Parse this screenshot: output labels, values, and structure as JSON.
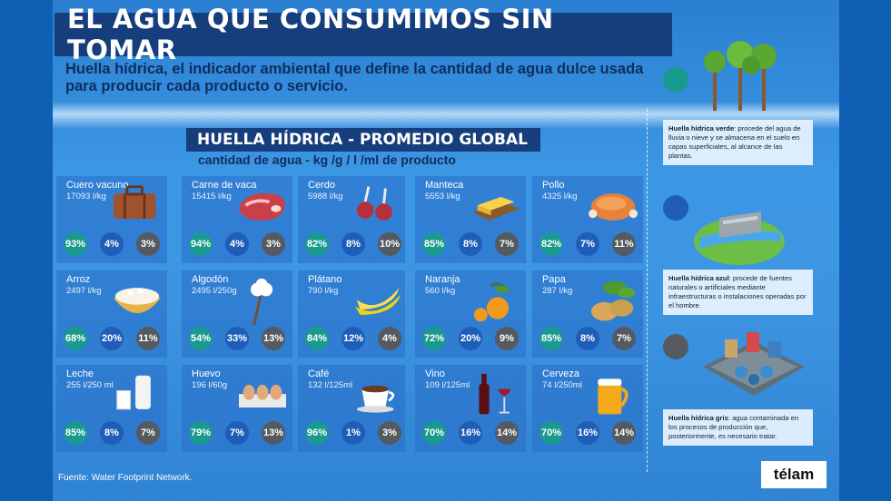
{
  "title": "EL AGUA QUE CONSUMIMOS SIN TOMAR",
  "subtitle": "Huella hídrica, el indicador ambiental que define la cantidad de agua dulce usada para producir cada producto o servicio.",
  "section_title": "HUELLA HÍDRICA - PROMEDIO GLOBAL",
  "section_subtitle": "cantidad de agua - kg /g / l /ml de producto",
  "colors": {
    "green": "#1a9a8e",
    "blue": "#1f5eb8",
    "grey": "#555a60"
  },
  "products": [
    {
      "name": "Cuero vacuno",
      "amount": "17093 l/kg",
      "green": "93%",
      "blue": "4%",
      "grey": "3%",
      "icon": "suitcase-icon"
    },
    {
      "name": "Carne de vaca",
      "amount": "15415 l/kg",
      "green": "94%",
      "blue": "4%",
      "grey": "3%",
      "icon": "beef-icon"
    },
    {
      "name": "Cerdo",
      "amount": "5988 l/kg",
      "green": "82%",
      "blue": "8%",
      "grey": "10%",
      "icon": "pork-chop-icon"
    },
    {
      "name": "Manteca",
      "amount": "5553 l/kg",
      "green": "85%",
      "blue": "8%",
      "grey": "7%",
      "icon": "butter-icon"
    },
    {
      "name": "Pollo",
      "amount": "4325 l/kg",
      "green": "82%",
      "blue": "7%",
      "grey": "11%",
      "icon": "chicken-icon"
    },
    {
      "name": "Arroz",
      "amount": "2497 l/kg",
      "green": "68%",
      "blue": "20%",
      "grey": "11%",
      "icon": "rice-bowl-icon"
    },
    {
      "name": "Algodón",
      "amount": "2495 l/250g",
      "green": "54%",
      "blue": "33%",
      "grey": "13%",
      "icon": "cotton-icon"
    },
    {
      "name": "Plátano",
      "amount": "790 l/kg",
      "green": "84%",
      "blue": "12%",
      "grey": "4%",
      "icon": "banana-icon"
    },
    {
      "name": "Naranja",
      "amount": "560 l/kg",
      "green": "72%",
      "blue": "20%",
      "grey": "9%",
      "icon": "orange-icon"
    },
    {
      "name": "Papa",
      "amount": "287 l/kg",
      "green": "85%",
      "blue": "8%",
      "grey": "7%",
      "icon": "potato-icon"
    },
    {
      "name": "Leche",
      "amount": "255 l/250 ml",
      "green": "85%",
      "blue": "8%",
      "grey": "7%",
      "icon": "milk-icon"
    },
    {
      "name": "Huevo",
      "amount": "196 l/60g",
      "green": "79%",
      "blue": "7%",
      "grey": "13%",
      "icon": "eggs-icon"
    },
    {
      "name": "Café",
      "amount": "132 l/125ml",
      "green": "96%",
      "blue": "1%",
      "grey": "3%",
      "icon": "coffee-cup-icon"
    },
    {
      "name": "Vino",
      "amount": "109 l/125ml",
      "green": "70%",
      "blue": "16%",
      "grey": "14%",
      "icon": "wine-icon"
    },
    {
      "name": "Cerveza",
      "amount": "74 l/250ml",
      "green": "70%",
      "blue": "16%",
      "grey": "14%",
      "icon": "beer-icon"
    }
  ],
  "legend": {
    "green_title": "Huella hídrica verde",
    "green_text": ": procede del agua de lluvia o nieve y se almacena en el suelo en capas superficiales, al alcance de las plantas.",
    "blue_title": "Huella hídrica azul",
    "blue_text": ": procede de fuentes naturales o artificiales mediante infraestructuras o instalaciones operadas por el hombre.",
    "grey_title": "Huella hídrica gris",
    "grey_text": ": agua contaminada en los procesos de producción que, posteriormente, es necesario tratar."
  },
  "source": "Fuente: Water Footprint Network.",
  "brand": "télam"
}
